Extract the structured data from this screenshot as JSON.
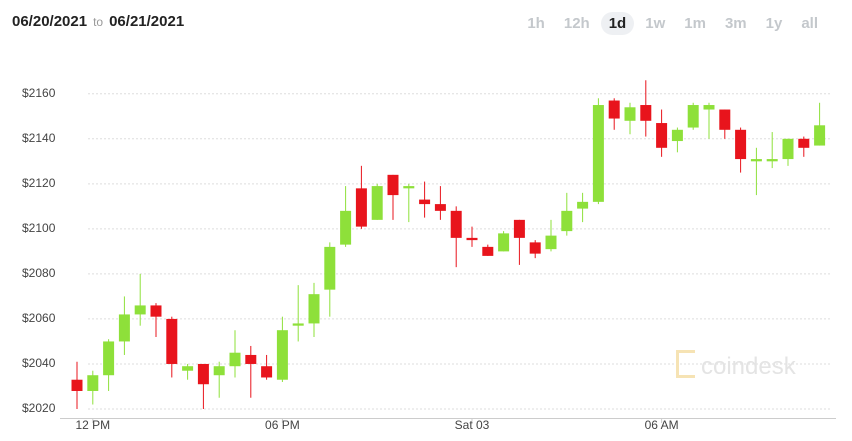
{
  "header": {
    "from": "06/20/2021",
    "sep": "to",
    "to": "06/21/2021"
  },
  "ranges": [
    "1h",
    "12h",
    "1d",
    "1w",
    "1m",
    "3m",
    "1y",
    "all"
  ],
  "selected_range": "1d",
  "watermark": "coindesk",
  "chart_data": {
    "type": "candlestick",
    "categories": [
      null,
      "12 PM",
      null,
      null,
      null,
      null,
      null,
      null,
      null,
      null,
      null,
      null,
      null,
      "06 PM",
      null,
      null,
      null,
      null,
      null,
      null,
      null,
      null,
      null,
      null,
      null,
      "Sat 03",
      null,
      null,
      null,
      null,
      null,
      null,
      null,
      null,
      null,
      null,
      null,
      "06 AM",
      null,
      null,
      null,
      null,
      null,
      null,
      null,
      null,
      null,
      null
    ],
    "open": [
      2033,
      2028,
      2035,
      2050,
      2062,
      2066,
      2060,
      2037,
      2040,
      2035,
      2039,
      2044,
      2039,
      2033,
      2057,
      2058,
      2073,
      2093,
      2118,
      2104,
      2124,
      2118,
      2113,
      2111,
      2108,
      2096,
      2092,
      2090,
      2104,
      2094,
      2091,
      2099,
      2109,
      2112,
      2157,
      2148,
      2155,
      2147,
      2139,
      2145,
      2153,
      2153,
      2144,
      2130,
      2130,
      2131,
      2140,
      2137
    ],
    "high": [
      2041,
      2037,
      2051,
      2070,
      2080,
      2067,
      2061,
      2040,
      2040,
      2041,
      2055,
      2048,
      2044,
      2061,
      2075,
      2076,
      2094,
      2119,
      2128,
      2120,
      2124,
      2120,
      2121,
      2119,
      2110,
      2101,
      2093,
      2099,
      2104,
      2095,
      2104,
      2116,
      2116,
      2158,
      2158,
      2156,
      2166,
      2153,
      2145,
      2156,
      2156,
      2153,
      2145,
      2136,
      2143,
      2140,
      2141,
      2156
    ],
    "low": [
      2020,
      2022,
      2028,
      2044,
      2057,
      2052,
      2034,
      2033,
      2020,
      2025,
      2034,
      2025,
      2033,
      2032,
      2050,
      2052,
      2061,
      2092,
      2100,
      2104,
      2104,
      2103,
      2105,
      2104,
      2083,
      2092,
      2088,
      2090,
      2084,
      2087,
      2090,
      2097,
      2103,
      2111,
      2144,
      2142,
      2141,
      2132,
      2134,
      2144,
      2140,
      2140,
      2125,
      2115,
      2127,
      2128,
      2132,
      2137
    ],
    "close": [
      2028,
      2035,
      2050,
      2062,
      2066,
      2061,
      2040,
      2039,
      2031,
      2039,
      2045,
      2040,
      2034,
      2055,
      2058,
      2071,
      2092,
      2108,
      2101,
      2119,
      2115,
      2119,
      2111,
      2108,
      2096,
      2095,
      2088,
      2098,
      2096,
      2089,
      2097,
      2108,
      2112,
      2155,
      2149,
      2154,
      2148,
      2136,
      2144,
      2155,
      2155,
      2144,
      2131,
      2131,
      2131,
      2140,
      2136,
      2146
    ],
    "up_color": "#8ee03a",
    "down_color": "#e8141c",
    "ylim": [
      2016,
      2175
    ],
    "yticks": [
      {
        "value": 2020,
        "label": "$2020"
      },
      {
        "value": 2040,
        "label": "$2040"
      },
      {
        "value": 2060,
        "label": "$2060"
      },
      {
        "value": 2080,
        "label": "$2080"
      },
      {
        "value": 2100,
        "label": "$2100"
      },
      {
        "value": 2120,
        "label": "$2120"
      },
      {
        "value": 2140,
        "label": "$2140"
      },
      {
        "value": 2160,
        "label": "$2160"
      }
    ],
    "grid": true
  }
}
